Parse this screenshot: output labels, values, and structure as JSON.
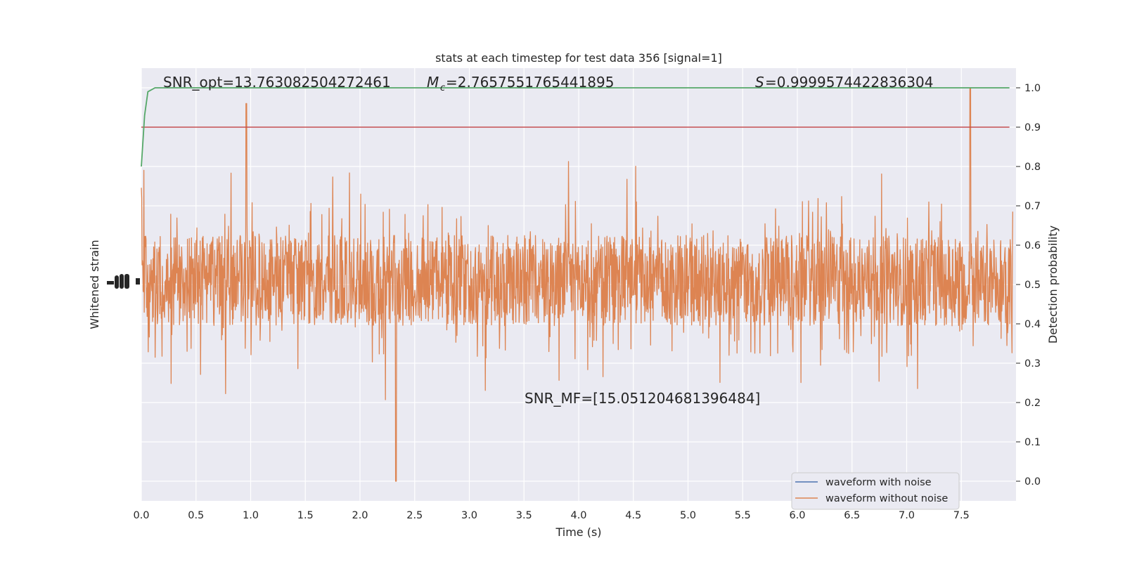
{
  "chart_data": {
    "type": "line",
    "title": "stats at each timestep for test data 356 [signal=1]",
    "xlabel": "Time (s)",
    "ylabel_left": "Whitened strain",
    "ylabel_right": "Detection probability",
    "xlim": [
      0.0,
      8.0
    ],
    "ylim_right": [
      -0.05,
      1.05
    ],
    "x_ticks": [
      "0.0",
      "0.5",
      "1.0",
      "1.5",
      "2.0",
      "2.5",
      "3.0",
      "3.5",
      "4.0",
      "4.5",
      "5.0",
      "5.5",
      "6.0",
      "6.5",
      "7.0",
      "7.5"
    ],
    "y_ticks_right": [
      "0.0",
      "0.1",
      "0.2",
      "0.3",
      "0.4",
      "0.5",
      "0.6",
      "0.7",
      "0.8",
      "0.9",
      "1.0"
    ],
    "grid": true,
    "legend_position": "lower-right",
    "series": [
      {
        "name": "waveform with noise",
        "color": "#4c72b0"
      },
      {
        "name": "waveform without noise",
        "color": "#dd8452"
      }
    ],
    "detection_probability": {
      "color": "#55a868",
      "x": [
        0.0,
        0.03,
        0.06,
        0.125,
        0.25,
        0.5,
        1.0,
        2.0,
        3.0,
        4.0,
        5.0,
        6.0,
        7.0,
        7.94
      ],
      "y": [
        0.8,
        0.93,
        0.99,
        1.0,
        1.0,
        1.0,
        1.0,
        1.0,
        1.0,
        1.0,
        1.0,
        1.0,
        1.0,
        1.0
      ]
    },
    "threshold": {
      "value": 0.9,
      "color": "#c44e52"
    },
    "annotations": {
      "snr_opt": "SNR_opt=13.763082504272461",
      "mc_value": "=2.7657551765441895",
      "s_value": "=0.9999574422836304",
      "snr_mf": "SNR_MF=[15.051204681396484]"
    },
    "strain_envelope": {
      "typical_range": [
        0.41,
        0.61
      ],
      "max_peak": 1.0,
      "max_peak_time": 7.58,
      "min_trough": 0.0,
      "min_trough_time": 2.33
    }
  }
}
